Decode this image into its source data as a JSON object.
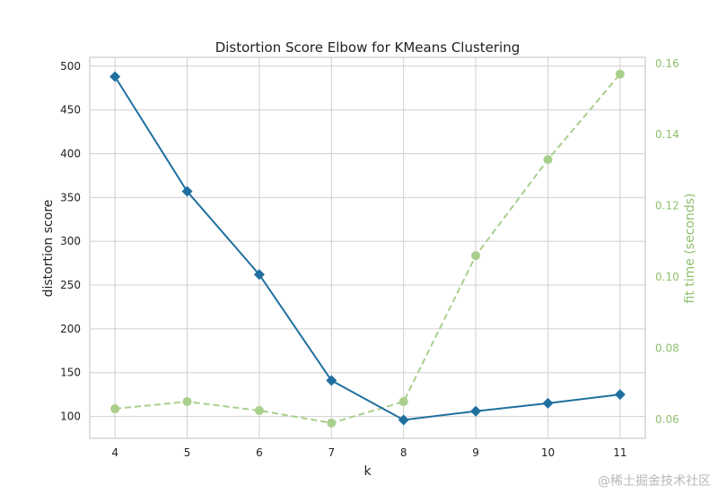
{
  "chart_data": {
    "type": "line",
    "title": "Distortion Score Elbow for KMeans Clustering",
    "xlabel": "k",
    "ylabel": "distortion score",
    "y2label": "fit time (seconds)",
    "x": [
      4,
      5,
      6,
      7,
      8,
      9,
      10,
      11
    ],
    "xlim": [
      3.65,
      11.35
    ],
    "ylim": [
      75,
      510
    ],
    "y2lim": [
      0.0547,
      0.1617
    ],
    "yticks": [
      100,
      150,
      200,
      250,
      300,
      350,
      400,
      450,
      500
    ],
    "y2ticks": [
      0.06,
      0.08,
      0.1,
      0.12,
      0.14,
      0.16
    ],
    "y2ticklabels": [
      "0.06",
      "0.08",
      "0.10",
      "0.12",
      "0.14",
      "0.16"
    ],
    "grid": true,
    "series": [
      {
        "axis": "left",
        "values": [
          488,
          357,
          262,
          141,
          96,
          106,
          115,
          125
        ],
        "color": "#1f6f9f",
        "marker": "diamond",
        "dash": "solid"
      },
      {
        "axis": "right",
        "values": [
          0.063,
          0.065,
          0.0625,
          0.059,
          0.065,
          0.106,
          0.133,
          0.157
        ],
        "color": "#a9cf8c",
        "marker": "circle",
        "dash": "dashed"
      }
    ],
    "colors": {
      "axis_text": "#222222",
      "right_axis_text": "#8fc06e",
      "grid": "#d0d0d0",
      "frame": "#bfbfbf"
    }
  },
  "watermark": "@稀土掘金技术社区"
}
